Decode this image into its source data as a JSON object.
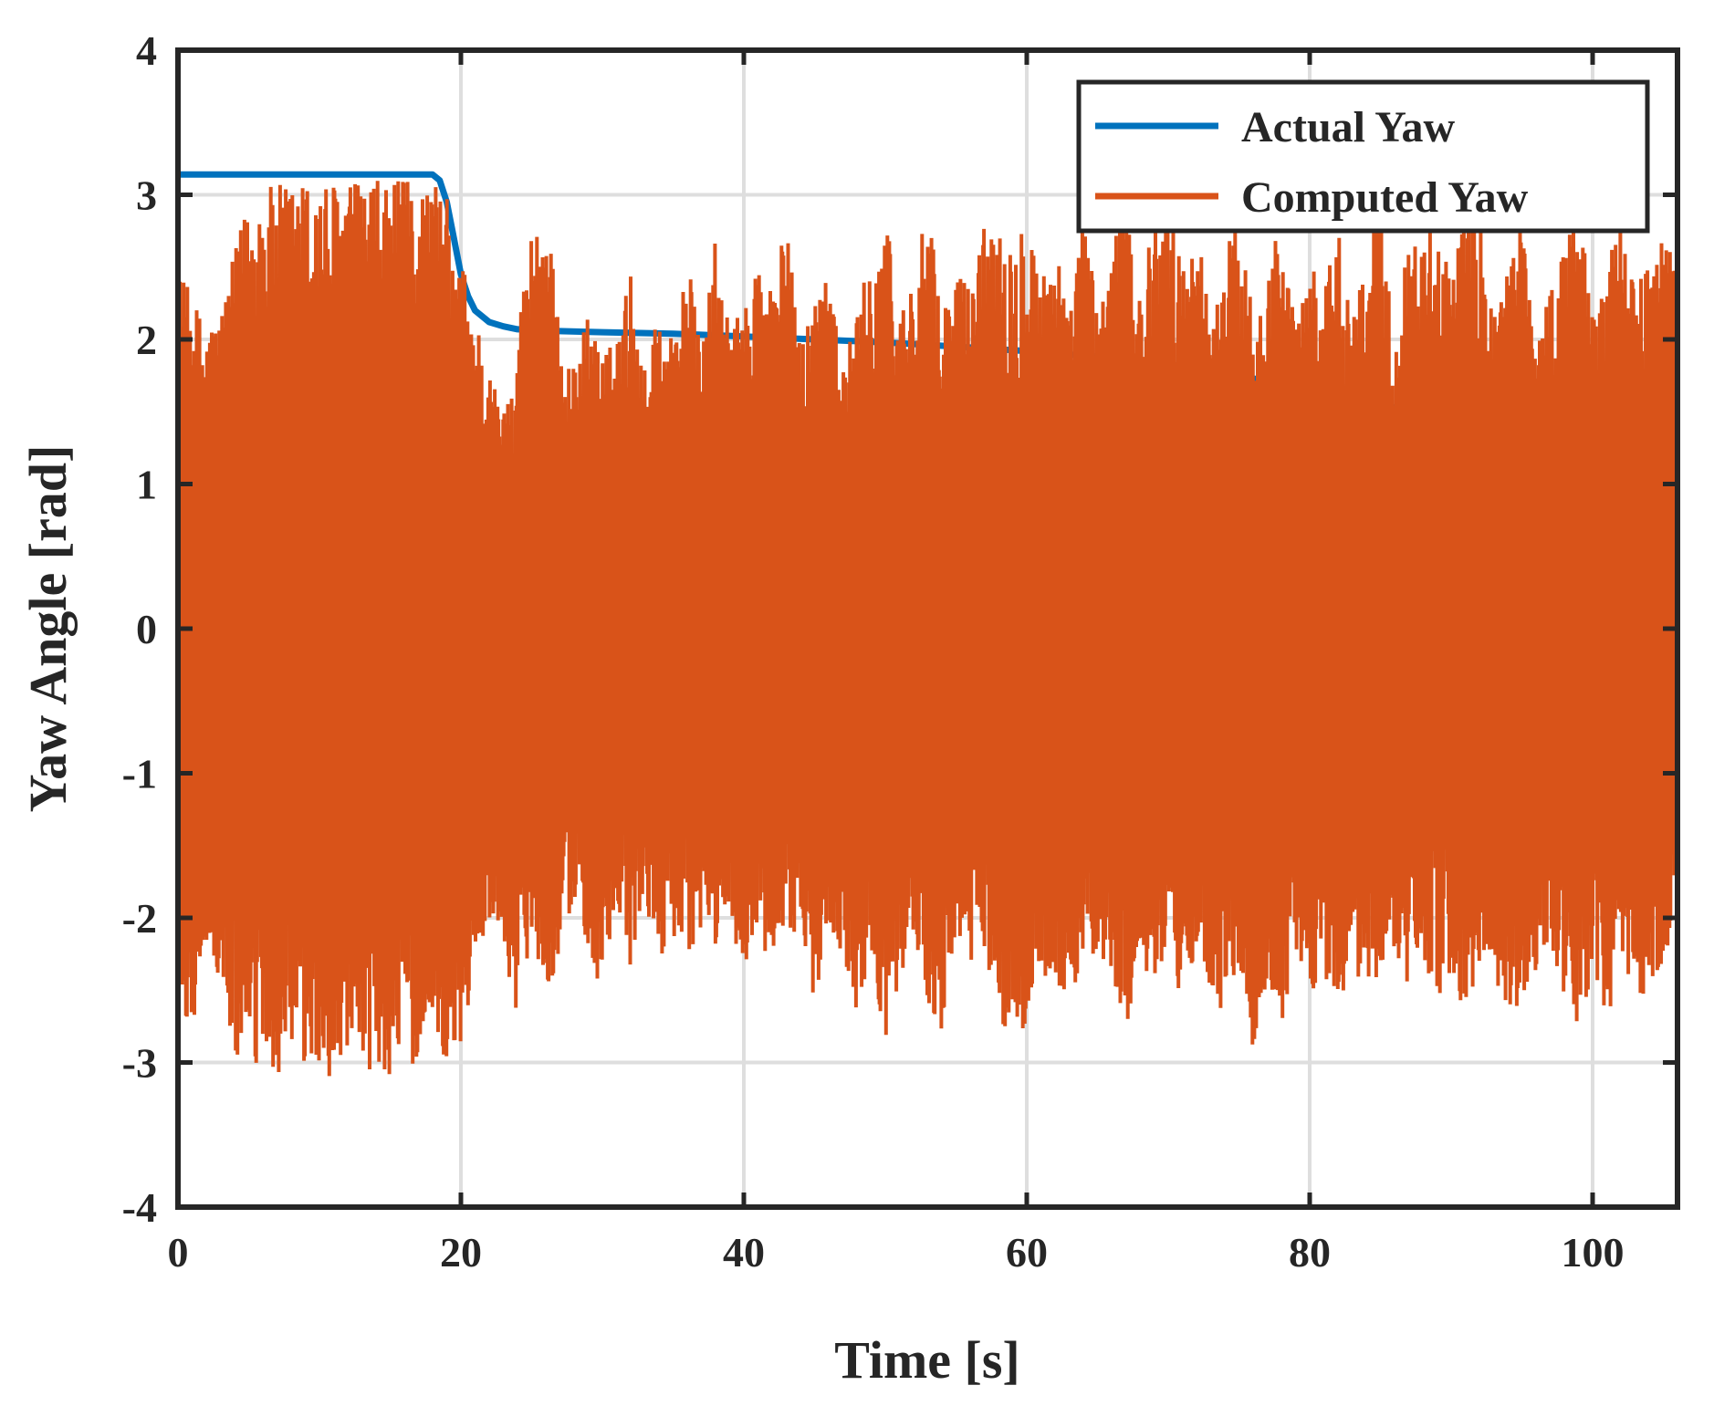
{
  "chart_data": {
    "type": "line",
    "title": "",
    "xlabel": "Time [s]",
    "ylabel": "Yaw Angle [rad]",
    "xlim": [
      0,
      106
    ],
    "ylim": [
      -4,
      4
    ],
    "xticks": [
      0,
      20,
      40,
      60,
      80,
      100
    ],
    "yticks": [
      -4,
      -3,
      -2,
      -1,
      0,
      1,
      2,
      3,
      4
    ],
    "grid": true,
    "legend_position": "top-right",
    "series": [
      {
        "name": "Actual Yaw",
        "color": "#0072BD",
        "note": "rendered underneath Computed Yaw",
        "x": [
          0,
          5,
          10,
          15,
          18,
          18.5,
          19,
          19.5,
          20,
          20.5,
          21,
          22,
          23,
          24,
          26,
          30,
          35,
          40,
          45,
          50,
          55,
          60,
          65,
          70,
          75,
          80,
          85,
          90,
          95,
          100,
          106
        ],
        "y": [
          3.14,
          3.14,
          3.14,
          3.14,
          3.14,
          3.1,
          2.95,
          2.7,
          2.45,
          2.3,
          2.2,
          2.12,
          2.09,
          2.07,
          2.06,
          2.05,
          2.04,
          2.02,
          2.0,
          1.98,
          1.95,
          1.92,
          1.88,
          1.83,
          1.75,
          1.65,
          1.55,
          1.45,
          1.35,
          1.25,
          1.15
        ]
      },
      {
        "name": "Computed Yaw",
        "color": "#D95319",
        "note": "dense noisy signal; envelope (upper/lower extremes) listed per time",
        "x": [
          0,
          1,
          2,
          3,
          4,
          5,
          6,
          8,
          10,
          12,
          14,
          16,
          17,
          18,
          18.5,
          19,
          19.5,
          20,
          21,
          22,
          23,
          24,
          25,
          26,
          27,
          28,
          29,
          30,
          31,
          32,
          33,
          34,
          35,
          36,
          37,
          38,
          39,
          40,
          41,
          42,
          43,
          44,
          45,
          46,
          47,
          48,
          49,
          50,
          51,
          52,
          53,
          54,
          55,
          56,
          57,
          58,
          59,
          60,
          61,
          62,
          63,
          64,
          65,
          66,
          67,
          68,
          69,
          70,
          71,
          72,
          73,
          74,
          75,
          76,
          77,
          78,
          79,
          80,
          81,
          82,
          83,
          84,
          85,
          86,
          87,
          88,
          89,
          90,
          91,
          92,
          93,
          94,
          95,
          96,
          97,
          98,
          99,
          100,
          101,
          102,
          103,
          104,
          105,
          106
        ],
        "upper": [
          2.5,
          2.3,
          2.1,
          2.2,
          2.6,
          3.0,
          3.05,
          3.1,
          3.1,
          3.1,
          3.1,
          3.1,
          3.1,
          3.1,
          3.05,
          3.0,
          2.5,
          2.6,
          2.2,
          1.8,
          1.5,
          2.1,
          2.8,
          3.0,
          2.0,
          1.8,
          2.2,
          1.9,
          2.0,
          2.5,
          1.8,
          2.3,
          2.0,
          2.6,
          1.9,
          2.7,
          2.1,
          2.2,
          2.6,
          2.4,
          2.8,
          2.0,
          2.3,
          2.7,
          1.8,
          2.2,
          2.6,
          2.9,
          2.2,
          2.5,
          2.9,
          2.2,
          2.5,
          2.4,
          2.8,
          3.0,
          2.6,
          3.1,
          2.4,
          2.8,
          2.1,
          3.0,
          2.2,
          2.7,
          3.0,
          2.4,
          2.8,
          3.0,
          2.5,
          2.9,
          2.1,
          2.6,
          2.9,
          2.2,
          2.6,
          2.8,
          2.1,
          2.5,
          2.4,
          2.8,
          2.2,
          2.6,
          3.0,
          2.0,
          2.8,
          2.6,
          3.0,
          2.4,
          2.9,
          3.0,
          2.2,
          2.5,
          2.9,
          2.0,
          2.4,
          2.7,
          3.0,
          2.2,
          2.5,
          3.0,
          2.3,
          2.6,
          2.8,
          2.4
        ],
        "lower": [
          -2.6,
          -2.8,
          -2.2,
          -2.5,
          -3.0,
          -3.08,
          -3.1,
          -3.1,
          -3.1,
          -3.1,
          -3.1,
          -3.08,
          -3.0,
          -2.7,
          -2.9,
          -3.0,
          -3.0,
          -2.9,
          -2.4,
          -2.0,
          -2.2,
          -2.7,
          -2.1,
          -2.5,
          -2.3,
          -1.9,
          -2.2,
          -2.6,
          -2.0,
          -2.4,
          -1.9,
          -2.3,
          -2.1,
          -2.5,
          -2.1,
          -2.2,
          -2.0,
          -2.4,
          -2.1,
          -2.5,
          -2.0,
          -2.3,
          -2.6,
          -2.0,
          -2.3,
          -2.7,
          -2.2,
          -2.9,
          -2.4,
          -2.2,
          -2.6,
          -2.8,
          -2.1,
          -2.4,
          -2.2,
          -2.9,
          -2.6,
          -3.0,
          -2.3,
          -2.7,
          -2.4,
          -2.6,
          -2.2,
          -2.5,
          -2.8,
          -2.3,
          -2.5,
          -2.4,
          -2.6,
          -2.2,
          -2.5,
          -2.7,
          -2.3,
          -3.0,
          -2.5,
          -2.8,
          -2.2,
          -2.6,
          -2.4,
          -2.7,
          -2.3,
          -2.6,
          -2.4,
          -2.2,
          -2.5,
          -2.3,
          -2.6,
          -2.4,
          -2.7,
          -2.3,
          -2.5,
          -2.8,
          -2.6,
          -2.4,
          -2.2,
          -2.6,
          -2.8,
          -2.4,
          -2.9,
          -2.3,
          -2.5,
          -2.6,
          -2.3,
          -2.2
        ]
      }
    ]
  }
}
